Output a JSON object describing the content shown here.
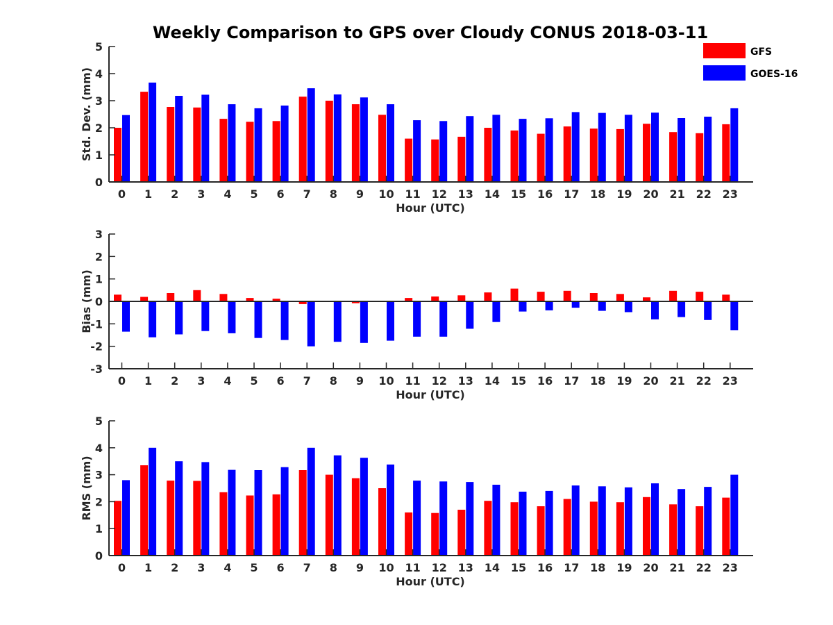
{
  "title": "Weekly Comparison to GPS over Cloudy CONUS 2018-03-11",
  "colors": {
    "GFS": "#ff0000",
    "GOES-16": "#0000ff",
    "axis": "#262626"
  },
  "legend": {
    "placement": "top-right",
    "entries": [
      "GFS",
      "GOES-16"
    ]
  },
  "chart_data": [
    {
      "type": "bar",
      "categories": [
        "0",
        "1",
        "2",
        "3",
        "4",
        "5",
        "6",
        "7",
        "8",
        "9",
        "10",
        "11",
        "12",
        "13",
        "14",
        "15",
        "16",
        "17",
        "18",
        "19",
        "20",
        "21",
        "22",
        "23"
      ],
      "xlabel": "Hour (UTC)",
      "ylabel": "Std. Dev. (mm)",
      "ylim": [
        0,
        5
      ],
      "yticks": [
        0,
        1,
        2,
        3,
        4,
        5
      ],
      "grid": false,
      "series": [
        {
          "name": "GFS",
          "values": [
            2.0,
            3.33,
            2.77,
            2.75,
            2.33,
            2.22,
            2.25,
            3.15,
            3.0,
            2.87,
            2.48,
            1.6,
            1.57,
            1.67,
            2.0,
            1.9,
            1.78,
            2.05,
            1.97,
            1.95,
            2.15,
            1.84,
            1.8,
            2.13
          ]
        },
        {
          "name": "GOES-16",
          "values": [
            2.47,
            3.67,
            3.18,
            3.22,
            2.87,
            2.72,
            2.82,
            3.46,
            3.23,
            3.12,
            2.87,
            2.28,
            2.25,
            2.43,
            2.48,
            2.33,
            2.35,
            2.58,
            2.55,
            2.48,
            2.56,
            2.36,
            2.41,
            2.72
          ]
        }
      ]
    },
    {
      "type": "bar",
      "categories": [
        "0",
        "1",
        "2",
        "3",
        "4",
        "5",
        "6",
        "7",
        "8",
        "9",
        "10",
        "11",
        "12",
        "13",
        "14",
        "15",
        "16",
        "17",
        "18",
        "19",
        "20",
        "21",
        "22",
        "23"
      ],
      "xlabel": "Hour (UTC)",
      "ylabel": "Bias (mm)",
      "ylim": [
        -3,
        3
      ],
      "yticks": [
        -3,
        -2,
        -1,
        0,
        1,
        2,
        3
      ],
      "grid": false,
      "series": [
        {
          "name": "GFS",
          "values": [
            0.3,
            0.2,
            0.37,
            0.5,
            0.33,
            0.15,
            0.12,
            -0.12,
            0.0,
            -0.08,
            0.03,
            0.15,
            0.22,
            0.27,
            0.4,
            0.57,
            0.43,
            0.47,
            0.37,
            0.33,
            0.18,
            0.47,
            0.43,
            0.3
          ]
        },
        {
          "name": "GOES-16",
          "values": [
            -1.35,
            -1.6,
            -1.47,
            -1.32,
            -1.42,
            -1.63,
            -1.72,
            -2.0,
            -1.8,
            -1.85,
            -1.75,
            -1.57,
            -1.57,
            -1.22,
            -0.92,
            -0.45,
            -0.4,
            -0.28,
            -0.42,
            -0.48,
            -0.8,
            -0.7,
            -0.83,
            -1.28
          ]
        }
      ]
    },
    {
      "type": "bar",
      "categories": [
        "0",
        "1",
        "2",
        "3",
        "4",
        "5",
        "6",
        "7",
        "8",
        "9",
        "10",
        "11",
        "12",
        "13",
        "14",
        "15",
        "16",
        "17",
        "18",
        "19",
        "20",
        "21",
        "22",
        "23"
      ],
      "xlabel": "Hour (UTC)",
      "ylabel": "RMS (mm)",
      "ylim": [
        0,
        5
      ],
      "yticks": [
        0,
        1,
        2,
        3,
        4,
        5
      ],
      "grid": false,
      "series": [
        {
          "name": "GFS",
          "values": [
            2.03,
            3.35,
            2.78,
            2.77,
            2.35,
            2.23,
            2.27,
            3.17,
            3.0,
            2.87,
            2.5,
            1.6,
            1.58,
            1.7,
            2.03,
            1.98,
            1.83,
            2.1,
            2.0,
            1.98,
            2.17,
            1.9,
            1.83,
            2.15
          ]
        },
        {
          "name": "GOES-16",
          "values": [
            2.8,
            4.0,
            3.5,
            3.47,
            3.18,
            3.17,
            3.28,
            4.0,
            3.72,
            3.63,
            3.38,
            2.78,
            2.75,
            2.73,
            2.63,
            2.37,
            2.4,
            2.6,
            2.57,
            2.53,
            2.68,
            2.47,
            2.55,
            3.0
          ]
        }
      ]
    }
  ]
}
